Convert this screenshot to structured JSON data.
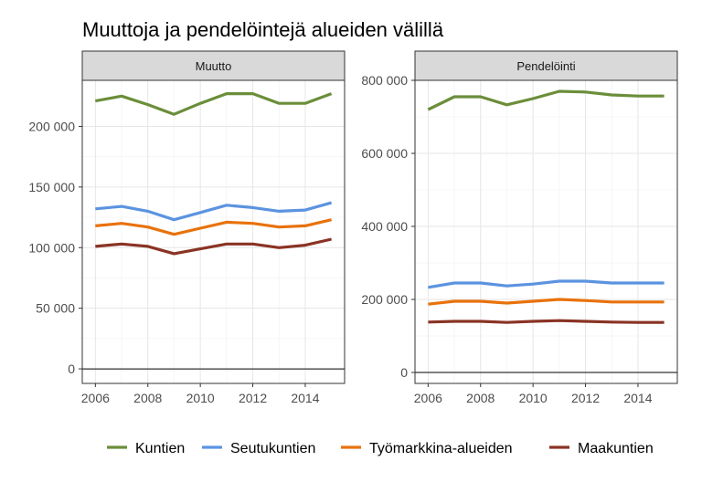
{
  "title": "Muuttoja ja pendelöintejä alueiden välillä",
  "chart_data": {
    "type": "line",
    "title": "Muuttoja ja pendelöintejä alueiden välillä",
    "legend_position": "bottom",
    "grid": true,
    "colors": {
      "Kuntien": "#6b8e3a",
      "Seutukuntien": "#5b93e0",
      "Työmarkkina-alueiden": "#e8720c",
      "Maakuntien": "#8a3324"
    },
    "legend": [
      "Kuntien",
      "Seutukuntien",
      "Työmarkkina-alueiden",
      "Maakuntien"
    ],
    "panels": [
      {
        "strip": "Muutto",
        "x": [
          2006,
          2007,
          2008,
          2009,
          2010,
          2011,
          2012,
          2013,
          2014,
          2015
        ],
        "xlim": [
          2005.5,
          2015.5
        ],
        "ylim": [
          -12000,
          238000
        ],
        "x_ticks": [
          2006,
          2008,
          2010,
          2012,
          2014
        ],
        "x_tick_labels": [
          "2006",
          "2008",
          "2010",
          "2012",
          "2014"
        ],
        "y_ticks": [
          0,
          50000,
          100000,
          150000,
          200000
        ],
        "y_tick_labels": [
          "0",
          "50 000",
          "100 000",
          "150 000",
          "200 000"
        ],
        "series": [
          {
            "name": "Kuntien",
            "values": [
              221000,
              225000,
              218000,
              210000,
              219000,
              227000,
              227000,
              219000,
              219000,
              227000
            ]
          },
          {
            "name": "Seutukuntien",
            "values": [
              132000,
              134000,
              130000,
              123000,
              129000,
              135000,
              133000,
              130000,
              131000,
              137000
            ]
          },
          {
            "name": "Työmarkkina-alueiden",
            "values": [
              118000,
              120000,
              117000,
              111000,
              116000,
              121000,
              120000,
              117000,
              118000,
              123000
            ]
          },
          {
            "name": "Maakuntien",
            "values": [
              101000,
              103000,
              101000,
              95000,
              99000,
              103000,
              103000,
              100000,
              102000,
              107000
            ]
          }
        ]
      },
      {
        "strip": "Pendelöinti",
        "x": [
          2006,
          2007,
          2008,
          2009,
          2010,
          2011,
          2012,
          2013,
          2014,
          2015
        ],
        "xlim": [
          2005.5,
          2015.5
        ],
        "ylim": [
          -30000,
          800000
        ],
        "x_ticks": [
          2006,
          2008,
          2010,
          2012,
          2014
        ],
        "x_tick_labels": [
          "2006",
          "2008",
          "2010",
          "2012",
          "2014"
        ],
        "y_ticks": [
          0,
          200000,
          400000,
          600000,
          800000
        ],
        "y_tick_labels": [
          "0",
          "200 000",
          "400 000",
          "600 000",
          "800 000"
        ],
        "series": [
          {
            "name": "Kuntien",
            "values": [
              720000,
              755000,
              755000,
              733000,
              750000,
              770000,
              768000,
              760000,
              757000,
              757000
            ]
          },
          {
            "name": "Seutukuntien",
            "values": [
              233000,
              245000,
              245000,
              237000,
              242000,
              250000,
              250000,
              245000,
              245000,
              245000
            ]
          },
          {
            "name": "Työmarkkina-alueiden",
            "values": [
              187000,
              195000,
              195000,
              190000,
              195000,
              200000,
              197000,
              193000,
              193000,
              193000
            ]
          },
          {
            "name": "Maakuntien",
            "values": [
              138000,
              140000,
              140000,
              137000,
              140000,
              142000,
              140000,
              138000,
              137000,
              137000
            ]
          }
        ]
      }
    ]
  }
}
